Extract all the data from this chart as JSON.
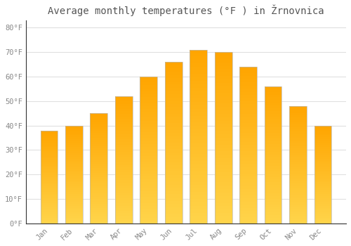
{
  "title": "Average monthly temperatures (°F ) in Žrnovnica",
  "months": [
    "Jan",
    "Feb",
    "Mar",
    "Apr",
    "May",
    "Jun",
    "Jul",
    "Aug",
    "Sep",
    "Oct",
    "Nov",
    "Dec"
  ],
  "values": [
    38,
    40,
    45,
    52,
    60,
    66,
    71,
    70,
    64,
    56,
    48,
    40
  ],
  "bar_color_light": "#FFD44A",
  "bar_color_dark": "#FFA500",
  "bar_edge_color": "#CCCCCC",
  "background_color": "#FFFFFF",
  "grid_color": "#E0E0E0",
  "ylim": [
    0,
    83
  ],
  "yticks": [
    0,
    10,
    20,
    30,
    40,
    50,
    60,
    70,
    80
  ],
  "ytick_labels": [
    "0°F",
    "10°F",
    "20°F",
    "30°F",
    "40°F",
    "50°F",
    "60°F",
    "70°F",
    "80°F"
  ],
  "tick_color": "#888888",
  "title_fontsize": 10,
  "tick_fontsize": 7.5,
  "bar_width": 0.7
}
